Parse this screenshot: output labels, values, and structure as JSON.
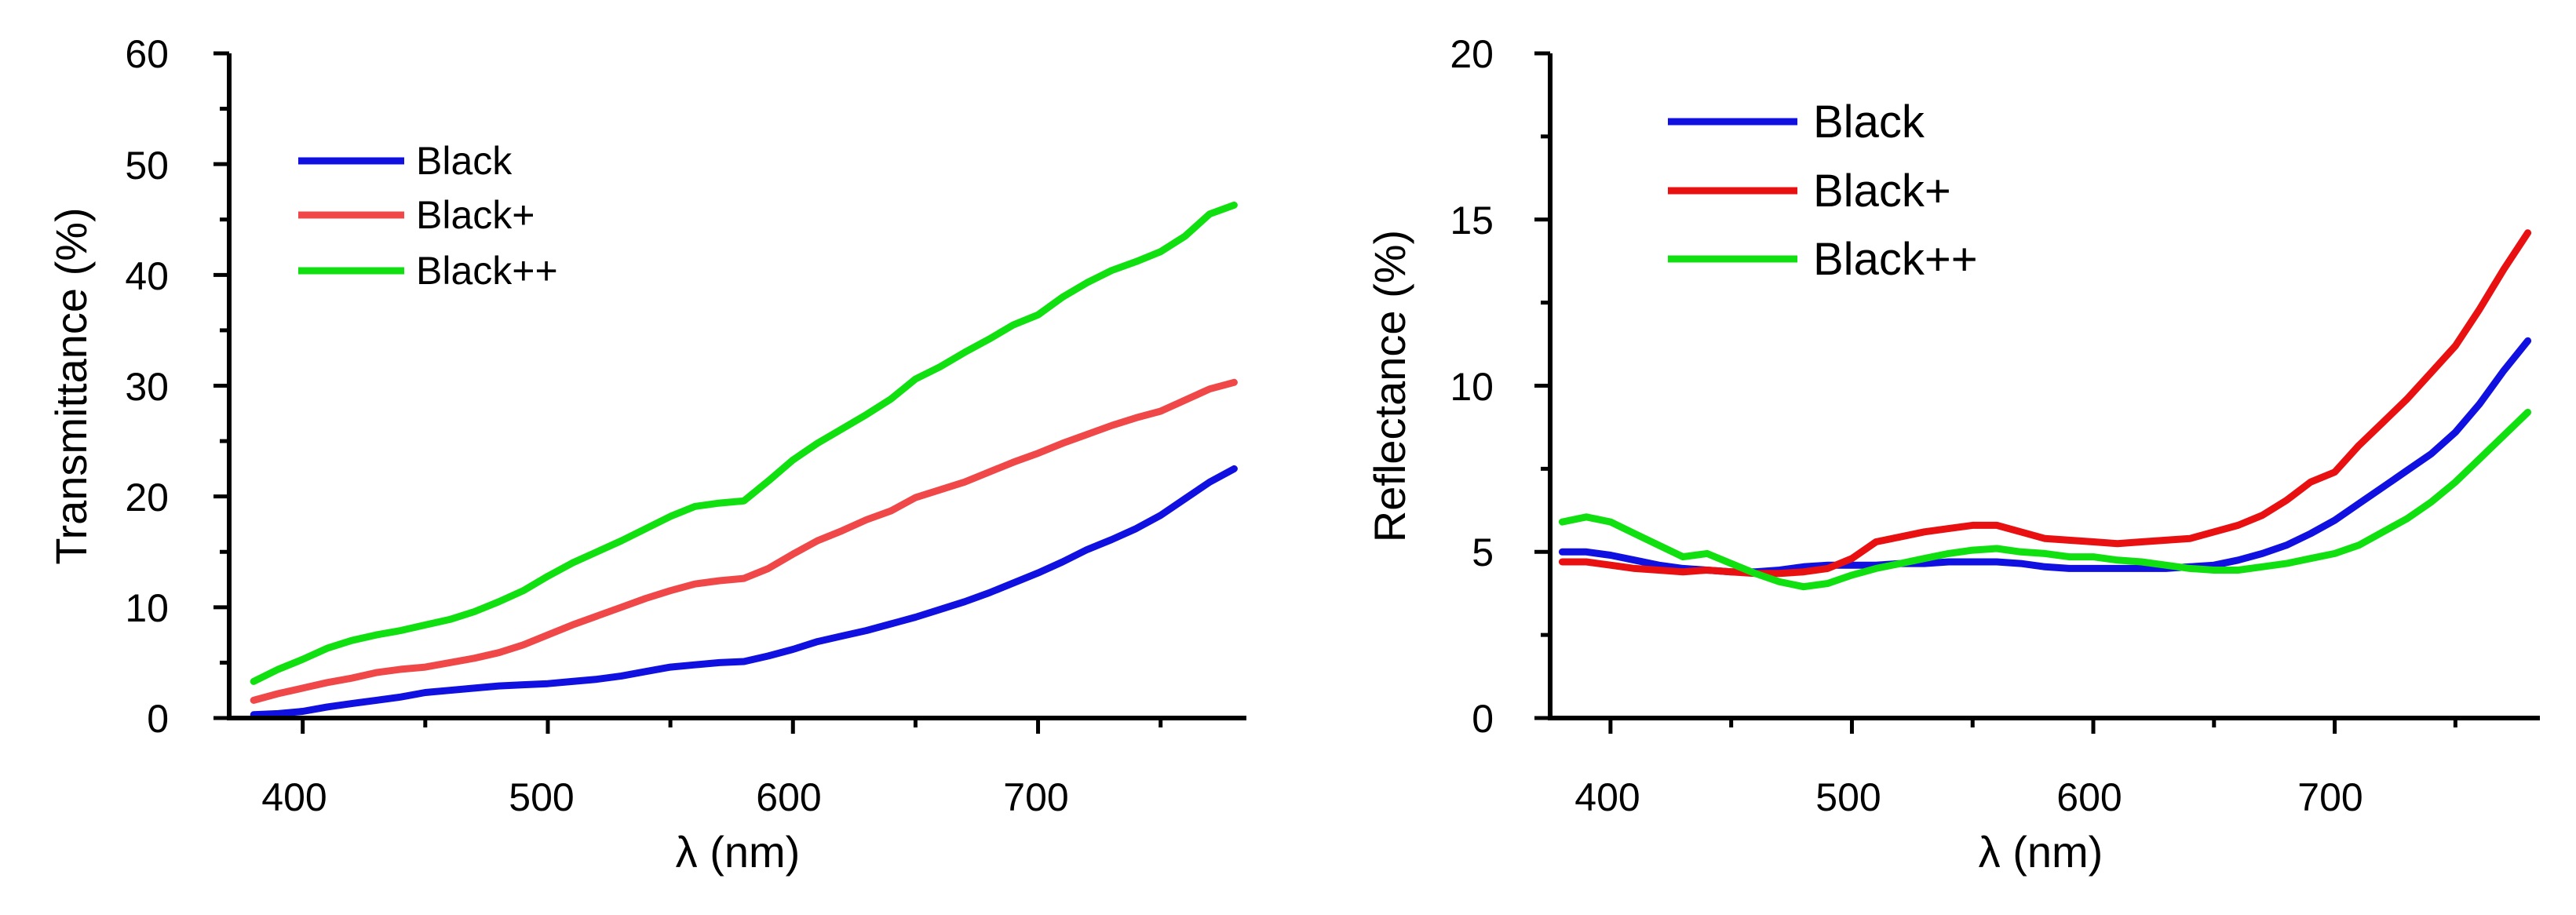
{
  "chart_data": [
    {
      "type": "line",
      "xlabel": "λ (nm)",
      "ylabel": "Transmittance (%)",
      "xlim": [
        370,
        785
      ],
      "ylim": [
        0,
        60
      ],
      "xticks": [
        400,
        500,
        600,
        700
      ],
      "xtick_labels": [
        "400",
        "500",
        "600",
        "700"
      ],
      "yticks": [
        0,
        10,
        20,
        30,
        40,
        50,
        60
      ],
      "ytick_labels": [
        "0",
        "10",
        "20",
        "30",
        "40",
        "50",
        "60"
      ],
      "legend_position": "top-left",
      "series": [
        {
          "name": "Black",
          "color": "#1010e0",
          "x": [
            380,
            390,
            400,
            410,
            420,
            430,
            440,
            450,
            460,
            470,
            480,
            490,
            500,
            510,
            520,
            530,
            540,
            550,
            560,
            570,
            580,
            590,
            600,
            610,
            620,
            630,
            640,
            650,
            660,
            670,
            680,
            690,
            700,
            710,
            720,
            730,
            740,
            750,
            760,
            770,
            780
          ],
          "y": [
            0.3,
            0.4,
            0.6,
            1.0,
            1.3,
            1.6,
            1.9,
            2.3,
            2.5,
            2.7,
            2.9,
            3.0,
            3.1,
            3.3,
            3.5,
            3.8,
            4.2,
            4.6,
            4.8,
            5.0,
            5.1,
            5.6,
            6.2,
            6.9,
            7.4,
            7.9,
            8.5,
            9.1,
            9.8,
            10.5,
            11.3,
            12.2,
            13.1,
            14.1,
            15.2,
            16.1,
            17.1,
            18.3,
            19.8,
            21.3,
            22.5
          ]
        },
        {
          "name": "Black+",
          "color": "#f04848",
          "x": [
            380,
            390,
            400,
            410,
            420,
            430,
            440,
            450,
            460,
            470,
            480,
            490,
            500,
            510,
            520,
            530,
            540,
            550,
            560,
            570,
            580,
            590,
            600,
            610,
            620,
            630,
            640,
            650,
            660,
            670,
            680,
            690,
            700,
            710,
            720,
            730,
            740,
            750,
            760,
            770,
            780
          ],
          "y": [
            1.6,
            2.2,
            2.7,
            3.2,
            3.6,
            4.1,
            4.4,
            4.6,
            5.0,
            5.4,
            5.9,
            6.6,
            7.5,
            8.4,
            9.2,
            10.0,
            10.8,
            11.5,
            12.1,
            12.4,
            12.6,
            13.5,
            14.8,
            16.0,
            16.9,
            17.9,
            18.7,
            19.9,
            20.6,
            21.3,
            22.2,
            23.1,
            23.9,
            24.8,
            25.6,
            26.4,
            27.1,
            27.7,
            28.7,
            29.7,
            30.3
          ]
        },
        {
          "name": "Black++",
          "color": "#10e010",
          "x": [
            380,
            390,
            400,
            410,
            420,
            430,
            440,
            450,
            460,
            470,
            480,
            490,
            500,
            510,
            520,
            530,
            540,
            550,
            560,
            570,
            580,
            590,
            600,
            610,
            620,
            630,
            640,
            650,
            660,
            670,
            680,
            690,
            700,
            710,
            720,
            730,
            740,
            750,
            760,
            770,
            780
          ],
          "y": [
            3.3,
            4.4,
            5.3,
            6.3,
            7.0,
            7.5,
            7.9,
            8.4,
            8.9,
            9.6,
            10.5,
            11.5,
            12.8,
            14.0,
            15.0,
            16.0,
            17.1,
            18.2,
            19.1,
            19.4,
            19.6,
            21.4,
            23.3,
            24.8,
            26.1,
            27.4,
            28.8,
            30.6,
            31.7,
            33.0,
            34.2,
            35.5,
            36.4,
            38.0,
            39.3,
            40.4,
            41.2,
            42.1,
            43.5,
            45.5,
            46.3
          ]
        }
      ]
    },
    {
      "type": "line",
      "xlabel": "λ (nm)",
      "ylabel": "Reflectance (%)",
      "xlim": [
        375,
        785
      ],
      "ylim": [
        0,
        20
      ],
      "xticks": [
        400,
        500,
        600,
        700
      ],
      "xtick_labels": [
        "400",
        "500",
        "600",
        "700"
      ],
      "yticks": [
        0,
        5,
        10,
        15,
        20
      ],
      "ytick_labels": [
        "0",
        "5",
        "10",
        "15",
        "20"
      ],
      "legend_position": "top-left",
      "series": [
        {
          "name": "Black",
          "color": "#1010e0",
          "x": [
            380,
            390,
            400,
            410,
            420,
            430,
            440,
            450,
            460,
            470,
            480,
            490,
            500,
            510,
            520,
            530,
            540,
            550,
            560,
            570,
            580,
            590,
            600,
            610,
            620,
            630,
            640,
            650,
            660,
            670,
            680,
            690,
            700,
            710,
            720,
            730,
            740,
            750,
            760,
            770,
            780
          ],
          "y": [
            5.0,
            5.0,
            4.9,
            4.75,
            4.6,
            4.5,
            4.45,
            4.4,
            4.4,
            4.45,
            4.55,
            4.6,
            4.6,
            4.6,
            4.65,
            4.65,
            4.7,
            4.7,
            4.7,
            4.65,
            4.55,
            4.5,
            4.5,
            4.5,
            4.5,
            4.5,
            4.55,
            4.6,
            4.75,
            4.95,
            5.2,
            5.55,
            5.95,
            6.45,
            6.95,
            7.45,
            7.95,
            8.6,
            9.45,
            10.45,
            11.35
          ]
        },
        {
          "name": "Black+",
          "color": "#e81010",
          "x": [
            380,
            390,
            400,
            410,
            420,
            430,
            440,
            450,
            460,
            470,
            480,
            490,
            500,
            510,
            520,
            530,
            540,
            550,
            560,
            570,
            580,
            590,
            600,
            610,
            620,
            630,
            640,
            650,
            660,
            670,
            680,
            690,
            700,
            710,
            720,
            730,
            740,
            750,
            760,
            770,
            780
          ],
          "y": [
            4.7,
            4.7,
            4.6,
            4.5,
            4.45,
            4.4,
            4.45,
            4.4,
            4.35,
            4.35,
            4.4,
            4.5,
            4.8,
            5.3,
            5.45,
            5.6,
            5.7,
            5.8,
            5.8,
            5.6,
            5.4,
            5.35,
            5.3,
            5.25,
            5.3,
            5.35,
            5.4,
            5.6,
            5.8,
            6.1,
            6.55,
            7.1,
            7.4,
            8.2,
            8.9,
            9.6,
            10.4,
            11.2,
            12.3,
            13.5,
            14.6
          ]
        },
        {
          "name": "Black++",
          "color": "#10e010",
          "x": [
            380,
            390,
            400,
            410,
            420,
            430,
            440,
            450,
            460,
            470,
            480,
            490,
            500,
            510,
            520,
            530,
            540,
            550,
            560,
            570,
            580,
            590,
            600,
            610,
            620,
            630,
            640,
            650,
            660,
            670,
            680,
            690,
            700,
            710,
            720,
            730,
            740,
            750,
            760,
            770,
            780
          ],
          "y": [
            5.9,
            6.05,
            5.9,
            5.55,
            5.2,
            4.85,
            4.95,
            4.65,
            4.35,
            4.1,
            3.95,
            4.05,
            4.3,
            4.5,
            4.65,
            4.8,
            4.95,
            5.05,
            5.1,
            5.0,
            4.95,
            4.85,
            4.85,
            4.75,
            4.7,
            4.6,
            4.5,
            4.45,
            4.45,
            4.55,
            4.65,
            4.8,
            4.95,
            5.2,
            5.6,
            6.0,
            6.5,
            7.1,
            7.8,
            8.5,
            9.2
          ]
        }
      ]
    }
  ]
}
